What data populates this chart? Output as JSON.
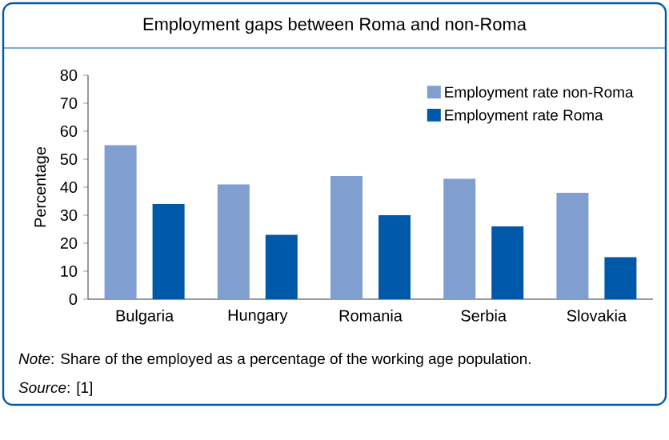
{
  "chart_data": {
    "type": "bar",
    "title": "Employment gaps between Roma and non-Roma",
    "ylabel": "Percentage",
    "categories": [
      "Bulgaria",
      "Hungary",
      "Romania",
      "Serbia",
      "Slovakia"
    ],
    "series": [
      {
        "name": "Employment rate non-Roma",
        "color": "#809ed0",
        "values": [
          55,
          41,
          44,
          43,
          38
        ]
      },
      {
        "name": "Employment rate Roma",
        "color": "#0059a8",
        "values": [
          34,
          23,
          30,
          26,
          15
        ]
      }
    ],
    "ylim": [
      0,
      80
    ],
    "yticks": [
      0,
      10,
      20,
      30,
      40,
      50,
      60,
      70,
      80
    ],
    "legend": "top right",
    "annotations": [
      "*Note*: Share of the employed as a percentage of the working age population.",
      "*Source*: [1]"
    ]
  }
}
